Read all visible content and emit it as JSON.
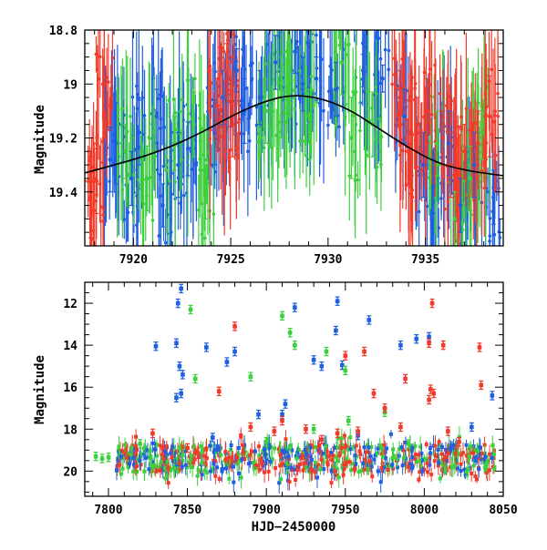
{
  "chart_data": [
    {
      "type": "scatter",
      "title": "",
      "xlabel": "",
      "ylabel": "Magnitude",
      "xlim": [
        7917.5,
        7939
      ],
      "ylim": [
        19.6,
        18.8
      ],
      "y_inverted": true,
      "grid": false,
      "legend": "none",
      "x_ticks": [
        7920,
        7925,
        7930,
        7935
      ],
      "x_tick_labels": [
        "7920",
        "7925",
        "7930",
        "7935"
      ],
      "y_ticks": [
        18.8,
        19,
        19.2,
        19.4
      ],
      "y_tick_labels": [
        "18.8",
        "19",
        "19.2",
        "19.4"
      ],
      "series": [
        {
          "color": "#1f5fe0",
          "points": [
            {
              "x": 7918.8,
              "y": 19.28,
              "err": 0.12
            },
            {
              "x": 7919.1,
              "y": 19.22,
              "err": 0.15
            },
            {
              "x": 7919.9,
              "y": 19.35,
              "err": 0.1
            },
            {
              "x": 7920.3,
              "y": 19.18,
              "err": 0.12
            },
            {
              "x": 7921.2,
              "y": 19.12,
              "err": 0.1
            },
            {
              "x": 7921.5,
              "y": 19.45,
              "err": 0.08
            },
            {
              "x": 7922.3,
              "y": 19.3,
              "err": 0.12
            },
            {
              "x": 7922.8,
              "y": 19.24,
              "err": 0.1
            },
            {
              "x": 7924.2,
              "y": 19.18,
              "err": 0.12
            },
            {
              "x": 7924.6,
              "y": 19.05,
              "err": 0.1
            },
            {
              "x": 7925.3,
              "y": 18.95,
              "err": 0.08
            },
            {
              "x": 7925.7,
              "y": 19.1,
              "err": 0.12
            },
            {
              "x": 7926.5,
              "y": 19.05,
              "err": 0.1
            },
            {
              "x": 7927.3,
              "y": 18.92,
              "err": 0.1
            },
            {
              "x": 7928.3,
              "y": 18.88,
              "err": 0.08
            },
            {
              "x": 7928.7,
              "y": 19.0,
              "err": 0.1
            },
            {
              "x": 7929.4,
              "y": 18.98,
              "err": 0.08
            },
            {
              "x": 7930.4,
              "y": 19.02,
              "err": 0.1
            },
            {
              "x": 7931.8,
              "y": 18.95,
              "err": 0.06
            },
            {
              "x": 7932.8,
              "y": 18.98,
              "err": 0.05
            },
            {
              "x": 7933.9,
              "y": 19.12,
              "err": 0.1
            },
            {
              "x": 7934.9,
              "y": 19.3,
              "err": 0.12
            },
            {
              "x": 7935.4,
              "y": 19.38,
              "err": 0.1
            },
            {
              "x": 7936.2,
              "y": 19.22,
              "err": 0.12
            },
            {
              "x": 7936.8,
              "y": 19.45,
              "err": 0.1
            },
            {
              "x": 7937.5,
              "y": 19.3,
              "err": 0.12
            },
            {
              "x": 7938.5,
              "y": 19.42,
              "err": 0.1
            }
          ]
        },
        {
          "color": "#3ecf3e",
          "points": [
            {
              "x": 7919.6,
              "y": 19.25,
              "err": 0.1
            },
            {
              "x": 7920.7,
              "y": 19.35,
              "err": 0.12
            },
            {
              "x": 7922.1,
              "y": 19.22,
              "err": 0.1
            },
            {
              "x": 7923.1,
              "y": 19.15,
              "err": 0.12
            },
            {
              "x": 7923.7,
              "y": 19.4,
              "err": 0.1
            },
            {
              "x": 7926.8,
              "y": 19.1,
              "err": 0.12
            },
            {
              "x": 7927.6,
              "y": 19.05,
              "err": 0.15
            },
            {
              "x": 7928.0,
              "y": 18.95,
              "err": 0.12
            },
            {
              "x": 7929.0,
              "y": 19.12,
              "err": 0.1
            },
            {
              "x": 7930.7,
              "y": 18.92,
              "err": 0.12
            },
            {
              "x": 7931.2,
              "y": 19.2,
              "err": 0.15
            },
            {
              "x": 7932.3,
              "y": 19.15,
              "err": 0.12
            },
            {
              "x": 7935.6,
              "y": 19.22,
              "err": 0.12
            },
            {
              "x": 7936.5,
              "y": 19.5,
              "err": 0.1
            },
            {
              "x": 7937.3,
              "y": 19.35,
              "err": 0.12
            },
            {
              "x": 7937.9,
              "y": 19.18,
              "err": 0.1
            }
          ]
        },
        {
          "color": "#f23a2a",
          "points": [
            {
              "x": 7917.8,
              "y": 19.42,
              "err": 0.15
            },
            {
              "x": 7918.1,
              "y": 19.36,
              "err": 0.12
            },
            {
              "x": 7918.5,
              "y": 19.0,
              "err": 0.2
            },
            {
              "x": 7924.3,
              "y": 19.08,
              "err": 0.1
            },
            {
              "x": 7924.8,
              "y": 18.95,
              "err": 0.1
            },
            {
              "x": 7925.1,
              "y": 19.15,
              "err": 0.12
            },
            {
              "x": 7933.7,
              "y": 19.05,
              "err": 0.1
            },
            {
              "x": 7934.1,
              "y": 19.25,
              "err": 0.12
            },
            {
              "x": 7934.6,
              "y": 19.15,
              "err": 0.1
            },
            {
              "x": 7935.1,
              "y": 19.1,
              "err": 0.12
            },
            {
              "x": 7935.9,
              "y": 19.2,
              "err": 0.1
            },
            {
              "x": 7936.3,
              "y": 19.3,
              "err": 0.12
            },
            {
              "x": 7937.0,
              "y": 19.25,
              "err": 0.1
            },
            {
              "x": 7937.7,
              "y": 19.22,
              "err": 0.12
            },
            {
              "x": 7938.3,
              "y": 19.12,
              "err": 0.15
            }
          ]
        }
      ],
      "model_curve": {
        "color": "#000000",
        "x": [
          7917.5,
          7919,
          7920.5,
          7922,
          7923.5,
          7925,
          7926.5,
          7928,
          7929.5,
          7931,
          7932.5,
          7934,
          7935.5,
          7937,
          7939
        ],
        "y": [
          19.33,
          19.3,
          19.27,
          19.23,
          19.18,
          19.12,
          19.07,
          19.04,
          19.05,
          19.09,
          19.16,
          19.23,
          19.29,
          19.32,
          19.34
        ]
      }
    },
    {
      "type": "scatter",
      "title": "",
      "xlabel": "HJD−2450000",
      "ylabel": "Magnitude",
      "xlim": [
        7785,
        8050
      ],
      "ylim": [
        21.2,
        11
      ],
      "y_inverted": true,
      "grid": false,
      "legend": "none",
      "x_ticks": [
        7800,
        7850,
        7900,
        7950,
        8000,
        8050
      ],
      "x_tick_labels": [
        "7800",
        "7850",
        "7900",
        "7950",
        "8000",
        "8050"
      ],
      "y_ticks": [
        12,
        14,
        16,
        18,
        20
      ],
      "y_tick_labels": [
        "12",
        "14",
        "16",
        "18",
        "20"
      ],
      "baseline": {
        "x": [
          7805,
          8045
        ],
        "y": 19.4,
        "spread": 1.3
      },
      "series": [
        {
          "color": "#1f5fe0",
          "points": [
            {
              "x": 7830,
              "y": 14.05
            },
            {
              "x": 7843,
              "y": 13.9
            },
            {
              "x": 7844,
              "y": 12.0
            },
            {
              "x": 7846,
              "y": 11.3
            },
            {
              "x": 7845,
              "y": 15.0
            },
            {
              "x": 7847,
              "y": 15.4
            },
            {
              "x": 7843,
              "y": 16.5
            },
            {
              "x": 7846,
              "y": 16.3
            },
            {
              "x": 7862,
              "y": 14.1
            },
            {
              "x": 7875,
              "y": 14.8
            },
            {
              "x": 7880,
              "y": 14.3
            },
            {
              "x": 7895,
              "y": 17.3
            },
            {
              "x": 7910,
              "y": 17.3
            },
            {
              "x": 7912,
              "y": 16.8
            },
            {
              "x": 7918,
              "y": 12.2
            },
            {
              "x": 7930,
              "y": 14.7
            },
            {
              "x": 7935,
              "y": 15.0
            },
            {
              "x": 7945,
              "y": 11.9
            },
            {
              "x": 7944,
              "y": 13.3
            },
            {
              "x": 7948,
              "y": 14.95
            },
            {
              "x": 7965,
              "y": 12.8
            },
            {
              "x": 7985,
              "y": 14.0
            },
            {
              "x": 7995,
              "y": 13.7
            },
            {
              "x": 8003,
              "y": 13.6
            },
            {
              "x": 8030,
              "y": 17.9
            },
            {
              "x": 8043,
              "y": 16.4
            },
            {
              "x": 7866,
              "y": 18.4
            },
            {
              "x": 7958,
              "y": 18.3
            }
          ]
        },
        {
          "color": "#3ecf3e",
          "points": [
            {
              "x": 7852,
              "y": 12.3
            },
            {
              "x": 7855,
              "y": 15.6
            },
            {
              "x": 7890,
              "y": 15.5
            },
            {
              "x": 7910,
              "y": 12.6
            },
            {
              "x": 7915,
              "y": 13.4
            },
            {
              "x": 7918,
              "y": 14.0
            },
            {
              "x": 7930,
              "y": 18.0
            },
            {
              "x": 7938,
              "y": 14.3
            },
            {
              "x": 7950,
              "y": 15.2
            },
            {
              "x": 7952,
              "y": 17.6
            },
            {
              "x": 7975,
              "y": 17.2
            },
            {
              "x": 7792,
              "y": 19.3
            },
            {
              "x": 7796,
              "y": 19.4
            },
            {
              "x": 7800,
              "y": 19.35
            },
            {
              "x": 7820,
              "y": 18.7
            },
            {
              "x": 7900,
              "y": 18.6
            },
            {
              "x": 7990,
              "y": 18.7
            }
          ]
        },
        {
          "color": "#f23a2a",
          "points": [
            {
              "x": 7828,
              "y": 18.2
            },
            {
              "x": 7850,
              "y": 18.9
            },
            {
              "x": 7870,
              "y": 16.2
            },
            {
              "x": 7880,
              "y": 13.1
            },
            {
              "x": 7890,
              "y": 17.9
            },
            {
              "x": 7905,
              "y": 18.1
            },
            {
              "x": 7910,
              "y": 17.6
            },
            {
              "x": 7925,
              "y": 18.0
            },
            {
              "x": 7935,
              "y": 18.5
            },
            {
              "x": 7945,
              "y": 18.2
            },
            {
              "x": 7950,
              "y": 14.5
            },
            {
              "x": 7958,
              "y": 18.1
            },
            {
              "x": 7962,
              "y": 14.3
            },
            {
              "x": 7968,
              "y": 16.3
            },
            {
              "x": 7975,
              "y": 17.0
            },
            {
              "x": 7988,
              "y": 15.6
            },
            {
              "x": 8003,
              "y": 13.9
            },
            {
              "x": 8005,
              "y": 12.0
            },
            {
              "x": 8004,
              "y": 16.1
            },
            {
              "x": 8006,
              "y": 16.3
            },
            {
              "x": 8003,
              "y": 16.6
            },
            {
              "x": 8012,
              "y": 14.0
            },
            {
              "x": 8015,
              "y": 18.1
            },
            {
              "x": 8035,
              "y": 14.1
            },
            {
              "x": 8036,
              "y": 15.9
            },
            {
              "x": 8022,
              "y": 18.6
            },
            {
              "x": 7985,
              "y": 17.9
            }
          ]
        }
      ]
    }
  ]
}
